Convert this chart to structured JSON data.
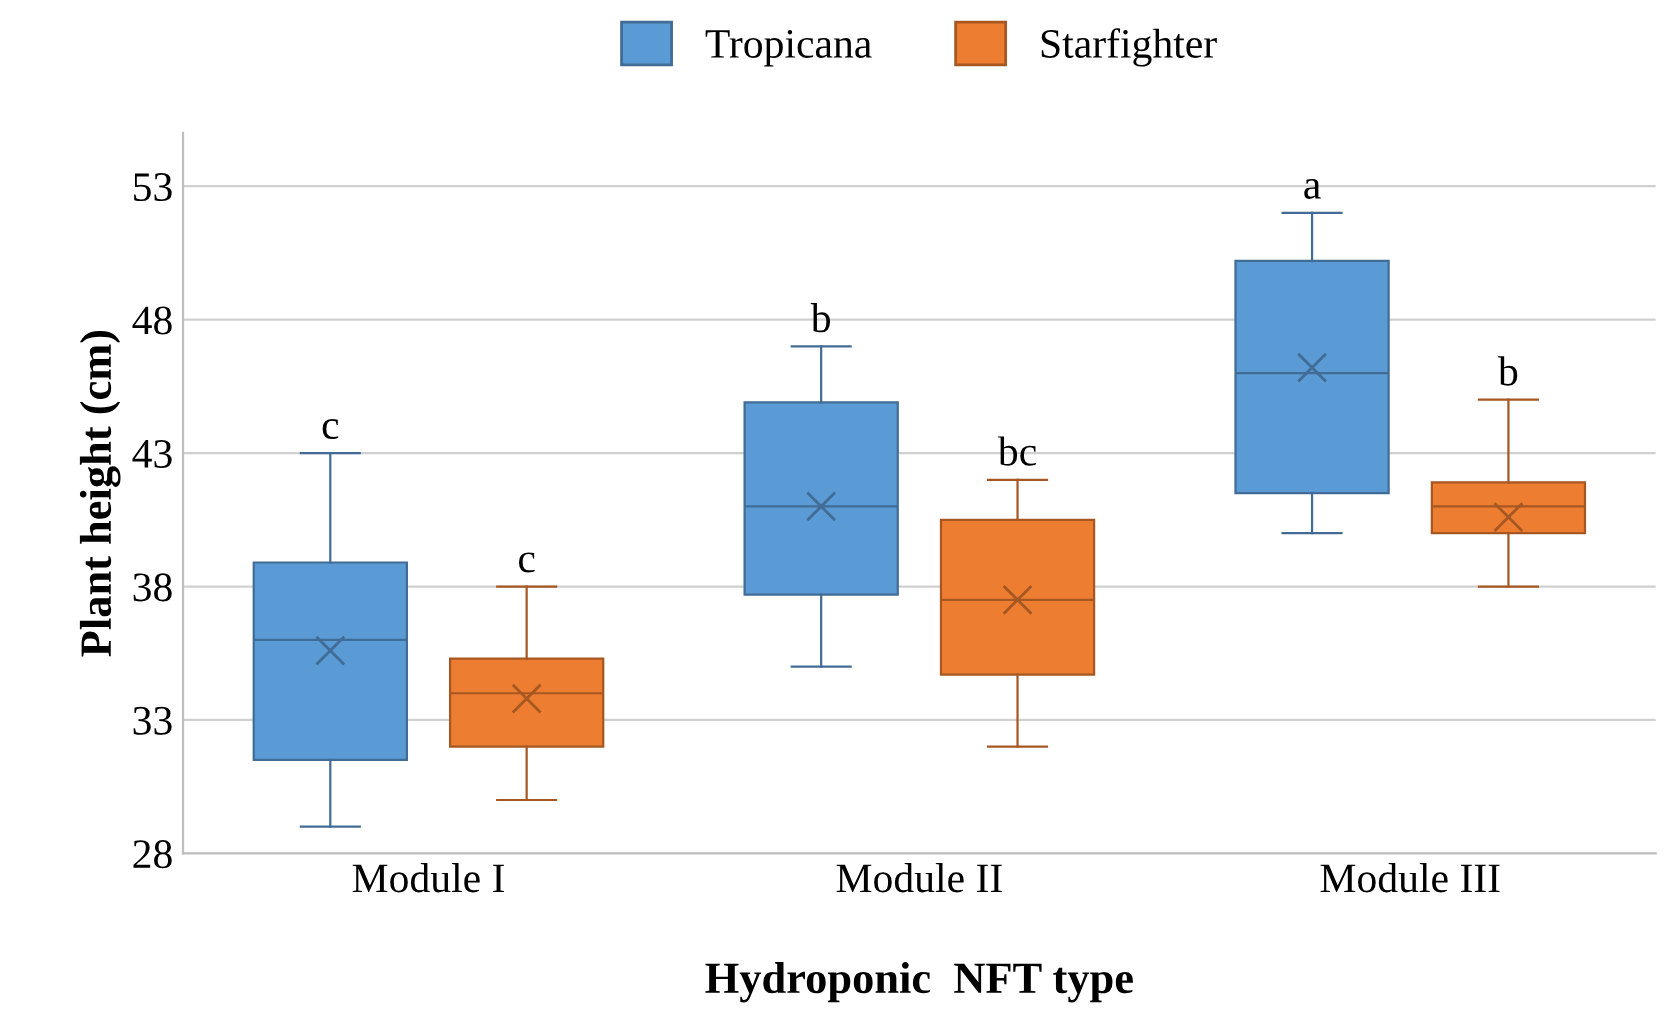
{
  "chart_data": {
    "type": "box",
    "xlabel": "Hydroponic  NFT type",
    "ylabel": "Plant height (cm)",
    "categories": [
      "Module I",
      "Module II",
      "Module III"
    ],
    "series": [
      {
        "name": "Tropicana",
        "color": "#5b9bd5",
        "boxes": [
          {
            "low": 29,
            "q1": 31.5,
            "median": 36,
            "q3": 38.9,
            "high": 43,
            "mean": 35.6
          },
          {
            "low": 35,
            "q1": 37.7,
            "median": 41,
            "q3": 44.9,
            "high": 47,
            "mean": 41
          },
          {
            "low": 40,
            "q1": 41.5,
            "median": 46,
            "q3": 50.2,
            "high": 52,
            "mean": 46.2
          }
        ]
      },
      {
        "name": "Starfighter",
        "color": "#ed7d31",
        "boxes": [
          {
            "low": 30,
            "q1": 32,
            "median": 34,
            "q3": 35.3,
            "high": 38,
            "mean": 33.8
          },
          {
            "low": 32,
            "q1": 34.7,
            "median": 37.5,
            "q3": 40.5,
            "high": 42,
            "mean": 37.5
          },
          {
            "low": 38,
            "q1": 40,
            "median": 41,
            "q3": 41.9,
            "high": 45,
            "mean": 40.6
          }
        ]
      }
    ],
    "annotations": [
      "c",
      "c",
      "b",
      "bc",
      "a",
      "b"
    ],
    "ylim": [
      28,
      55
    ],
    "yticks": [
      28,
      33,
      38,
      43,
      48,
      53
    ],
    "grid": "y",
    "legend": "top",
    "marker": "cross"
  }
}
